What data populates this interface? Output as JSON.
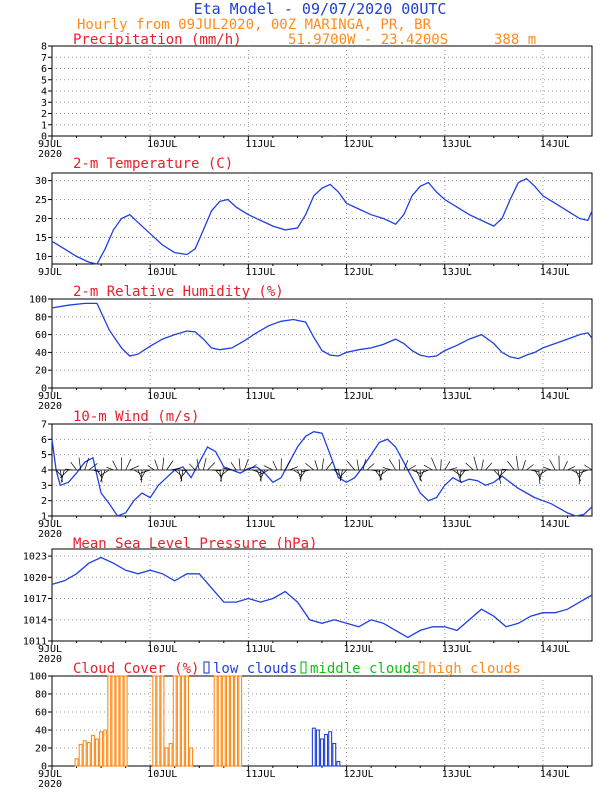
{
  "header": {
    "title": "Eta Model - 09/07/2020 00UTC",
    "subtitle": "Hourly from 09JUL2020, 00Z  MARINGA, PR, BR",
    "coords": "51.9700W - 23.4200S",
    "elevation": "388  m"
  },
  "colors": {
    "title": "#1f3fd0",
    "subtitle": "#ff8c1a",
    "panel_title": "#e8202a",
    "line": "#2040e0",
    "wind_arrow": "#000000",
    "low": "#2040e0",
    "middle": "#10c010",
    "high": "#ff8c1a"
  },
  "x_axis": {
    "ticks": [
      0,
      24,
      48,
      72,
      96,
      120
    ],
    "labels": [
      "9JUL",
      "10JUL",
      "11JUL",
      "12JUL",
      "13JUL",
      "14JUL"
    ],
    "year": "2020",
    "max_hour": 132
  },
  "chart_data": [
    {
      "type": "bar",
      "title": "Precipitation (mm/h)",
      "ylim": [
        0,
        8
      ],
      "yticks": [
        0,
        1,
        2,
        3,
        4,
        5,
        6,
        7,
        8
      ],
      "x": [
        66,
        69
      ],
      "values": [
        0.05,
        0.05
      ]
    },
    {
      "type": "line",
      "title": "2-m Temperature (C)",
      "ylim": [
        8,
        32
      ],
      "yticks": [
        10,
        15,
        20,
        25,
        30
      ],
      "x": [
        0,
        3,
        6,
        9,
        11,
        13,
        15,
        17,
        19,
        21,
        24,
        27,
        30,
        33,
        35,
        37,
        39,
        41,
        43,
        45,
        48,
        51,
        54,
        57,
        60,
        62,
        64,
        66,
        68,
        70,
        72,
        75,
        78,
        81,
        84,
        86,
        88,
        90,
        92,
        94,
        96,
        99,
        102,
        105,
        108,
        110,
        112,
        114,
        116,
        118,
        120,
        123,
        126,
        129,
        131,
        132
      ],
      "values": [
        14,
        12,
        10,
        8.5,
        8,
        12,
        17,
        20,
        21,
        19,
        16,
        13,
        11,
        10.5,
        12,
        17,
        22,
        24.5,
        25,
        23,
        21,
        19.5,
        18,
        17,
        17.5,
        21,
        26,
        28,
        29,
        27,
        24,
        22.5,
        21,
        20,
        18.5,
        21,
        26,
        28.5,
        29.5,
        27,
        25,
        23,
        21,
        19.5,
        18,
        20,
        25,
        29.5,
        30.5,
        28.5,
        26,
        24,
        22,
        20,
        19.5,
        22
      ]
    },
    {
      "type": "line",
      "title": "2-m Relative Humidity (%)",
      "ylim": [
        0,
        100
      ],
      "yticks": [
        0,
        20,
        40,
        60,
        80,
        100
      ],
      "x": [
        0,
        4,
        8,
        11,
        14,
        17,
        19,
        21,
        24,
        27,
        30,
        33,
        35,
        37,
        39,
        41,
        44,
        47,
        50,
        53,
        56,
        59,
        62,
        64,
        66,
        68,
        70,
        72,
        75,
        78,
        81,
        84,
        86,
        88,
        90,
        92,
        94,
        96,
        99,
        102,
        105,
        108,
        110,
        112,
        114,
        116,
        118,
        120,
        123,
        126,
        129,
        131,
        132
      ],
      "values": [
        90,
        93,
        95,
        95,
        65,
        45,
        36,
        38,
        47,
        55,
        60,
        64,
        63,
        55,
        45,
        43,
        45,
        53,
        62,
        70,
        75,
        77,
        74,
        57,
        42,
        37,
        36,
        40,
        43,
        45,
        49,
        55,
        50,
        42,
        37,
        35,
        36,
        42,
        48,
        55,
        60,
        50,
        40,
        35,
        33,
        37,
        40,
        45,
        50,
        55,
        60,
        62,
        56
      ]
    },
    {
      "type": "line",
      "title": "10-m Wind (m/s)",
      "ylim": [
        1,
        7
      ],
      "yticks": [
        1,
        2,
        3,
        4,
        5,
        6,
        7
      ],
      "x": [
        0,
        1,
        2,
        4,
        6,
        8,
        10,
        12,
        14,
        16,
        18,
        20,
        22,
        24,
        26,
        28,
        30,
        32,
        34,
        36,
        38,
        40,
        42,
        44,
        46,
        48,
        50,
        52,
        54,
        56,
        58,
        60,
        62,
        64,
        66,
        68,
        70,
        72,
        74,
        76,
        78,
        80,
        82,
        84,
        86,
        88,
        90,
        92,
        94,
        96,
        98,
        100,
        102,
        104,
        106,
        108,
        110,
        112,
        114,
        116,
        118,
        120,
        122,
        124,
        126,
        128,
        130,
        132
      ],
      "values": [
        6,
        4,
        3,
        3.2,
        3.8,
        4.5,
        4.8,
        2.5,
        1.8,
        1,
        1.2,
        2,
        2.5,
        2.2,
        3,
        3.5,
        4,
        4.2,
        3.5,
        4.5,
        5.5,
        5.2,
        4.2,
        4,
        3.8,
        4.1,
        4.2,
        3.8,
        3.2,
        3.5,
        4.5,
        5.5,
        6.2,
        6.5,
        6.4,
        5,
        3.5,
        3.2,
        3.5,
        4.2,
        5,
        5.8,
        6,
        5.5,
        4.5,
        3.5,
        2.5,
        2,
        2.2,
        3,
        3.5,
        3.2,
        3.4,
        3.3,
        3,
        3.2,
        3.6,
        3.2,
        2.8,
        2.5,
        2.2,
        2,
        1.8,
        1.5,
        1.2,
        1,
        1.1,
        1.6
      ]
    },
    {
      "type": "line",
      "title": "Mean Sea Level Pressure (hPa)",
      "ylim": [
        1011,
        1024
      ],
      "yticks": [
        1011,
        1014,
        1017,
        1020,
        1023
      ],
      "x": [
        0,
        3,
        6,
        9,
        12,
        15,
        18,
        21,
        24,
        27,
        30,
        33,
        36,
        39,
        42,
        45,
        48,
        51,
        54,
        57,
        60,
        63,
        66,
        69,
        72,
        75,
        78,
        81,
        84,
        87,
        90,
        93,
        96,
        99,
        102,
        105,
        108,
        111,
        114,
        117,
        120,
        123,
        126,
        129,
        132
      ],
      "values": [
        1019,
        1019.5,
        1020.5,
        1022,
        1022.8,
        1022,
        1021,
        1020.5,
        1021,
        1020.5,
        1019.5,
        1020.5,
        1020.5,
        1018.5,
        1016.5,
        1016.5,
        1017,
        1016.5,
        1017,
        1018,
        1016.5,
        1014,
        1013.5,
        1014,
        1013.5,
        1013,
        1014,
        1013.5,
        1012.5,
        1011.5,
        1012.5,
        1013,
        1013,
        1012.5,
        1014,
        1015.5,
        1014.5,
        1013,
        1013.5,
        1014.5,
        1015,
        1015,
        1015.5,
        1016.5,
        1017.5
      ]
    },
    {
      "type": "bar",
      "title": "Cloud Cover (%)",
      "ylim": [
        0,
        100
      ],
      "yticks": [
        0,
        20,
        40,
        60,
        80,
        100
      ],
      "legend": [
        {
          "name": "low clouds",
          "color": "#2040e0"
        },
        {
          "name": "middle clouds",
          "color": "#10c010"
        },
        {
          "name": "high clouds",
          "color": "#ff8c1a"
        }
      ],
      "series": [
        {
          "name": "low clouds",
          "x": [
            64,
            65,
            66,
            67,
            68,
            69,
            70
          ],
          "values": [
            42,
            40,
            30,
            35,
            38,
            25,
            5
          ]
        },
        {
          "name": "high clouds",
          "x": [
            6,
            7,
            8,
            9,
            10,
            11,
            12,
            13,
            14,
            15,
            16,
            17,
            18,
            19,
            20,
            21,
            22,
            23,
            24,
            25,
            26,
            27,
            28,
            29,
            30,
            31,
            32,
            33,
            34,
            35,
            36,
            37,
            38,
            39,
            40,
            41,
            42,
            43,
            44,
            45,
            46
          ],
          "values": [
            8,
            24,
            28,
            26,
            34,
            30,
            38,
            40,
            100,
            100,
            100,
            100,
            100,
            0,
            0,
            0,
            0,
            0,
            0,
            100,
            100,
            100,
            20,
            25,
            100,
            100,
            100,
            100,
            20,
            0,
            0,
            0,
            0,
            0,
            100,
            100,
            100,
            100,
            100,
            100,
            100
          ]
        }
      ]
    }
  ]
}
